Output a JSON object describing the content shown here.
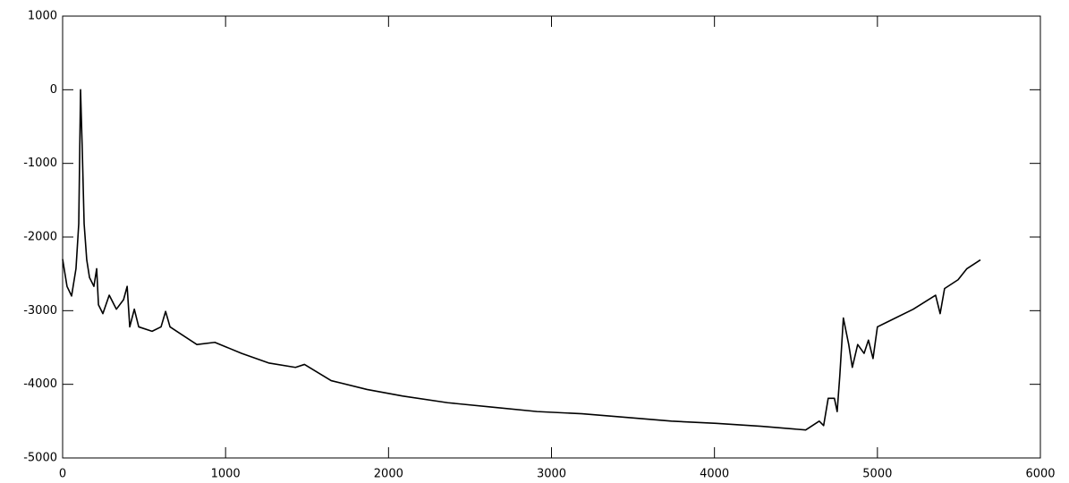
{
  "chart_data": {
    "type": "line",
    "x": [
      0,
      27,
      55,
      82,
      99,
      110,
      121,
      132,
      148,
      165,
      192,
      209,
      220,
      247,
      286,
      330,
      374,
      396,
      412,
      440,
      467,
      549,
      604,
      632,
      659,
      714,
      824,
      934,
      1099,
      1264,
      1429,
      1484,
      1648,
      1868,
      2088,
      2363,
      2637,
      2912,
      3187,
      3462,
      3736,
      4011,
      4286,
      4560,
      4643,
      4670,
      4698,
      4736,
      4753,
      4769,
      4791,
      4824,
      4846,
      4879,
      4918,
      4945,
      4973,
      5000,
      5055,
      5220,
      5357,
      5385,
      5412,
      5495,
      5549,
      5632
    ],
    "series": [
      {
        "color": "#000000",
        "values": [
          -2300,
          -2670,
          -2800,
          -2430,
          -1820,
          0,
          -850,
          -1820,
          -2310,
          -2550,
          -2670,
          -2430,
          -2920,
          -3040,
          -2790,
          -2980,
          -2850,
          -2670,
          -3220,
          -2980,
          -3220,
          -3280,
          -3220,
          -3010,
          -3220,
          -3300,
          -3460,
          -3430,
          -3580,
          -3710,
          -3770,
          -3730,
          -3950,
          -4070,
          -4160,
          -4250,
          -4310,
          -4370,
          -4400,
          -4450,
          -4500,
          -4530,
          -4570,
          -4620,
          -4500,
          -4560,
          -4190,
          -4190,
          -4370,
          -3890,
          -3100,
          -3460,
          -3770,
          -3460,
          -3580,
          -3400,
          -3650,
          -3220,
          -3160,
          -2980,
          -2790,
          -3040,
          -2700,
          -2580,
          -2430,
          -2310
        ]
      }
    ],
    "xlim": [
      0,
      6000
    ],
    "xticks": [
      0,
      1000,
      2000,
      3000,
      4000,
      5000,
      6000
    ],
    "ylim": [
      -5000,
      1000
    ],
    "yticks": [
      -5000,
      -4000,
      -3000,
      -2000,
      -1000,
      0,
      1000
    ]
  }
}
